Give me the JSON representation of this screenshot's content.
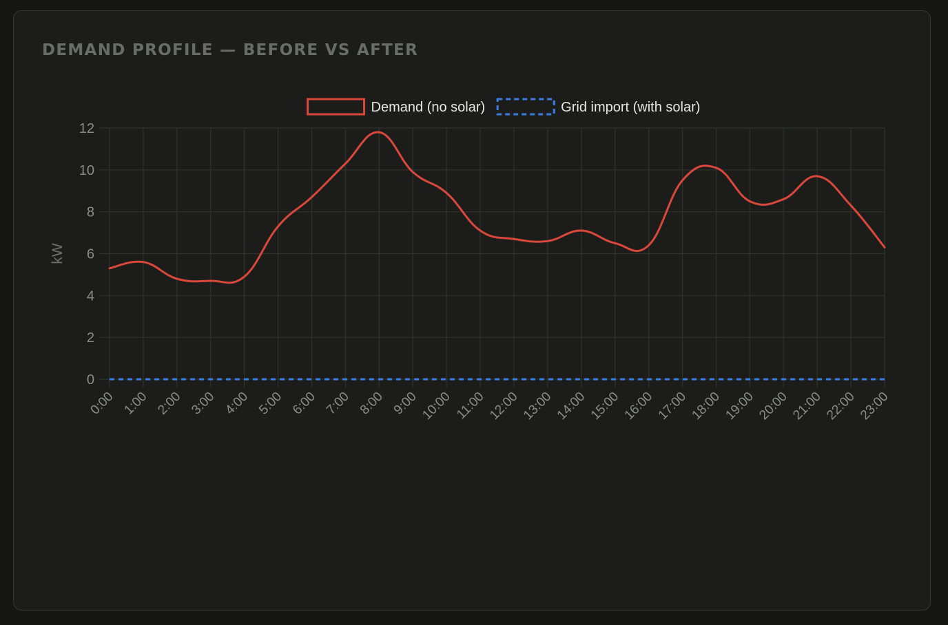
{
  "panel": {
    "title": "DEMAND PROFILE — BEFORE VS AFTER"
  },
  "chart_data": {
    "type": "line",
    "title": "",
    "xlabel": "",
    "ylabel": "kW",
    "x": [
      "0:00",
      "1:00",
      "2:00",
      "3:00",
      "4:00",
      "5:00",
      "6:00",
      "7:00",
      "8:00",
      "9:00",
      "10:00",
      "11:00",
      "12:00",
      "13:00",
      "14:00",
      "15:00",
      "16:00",
      "17:00",
      "18:00",
      "19:00",
      "20:00",
      "21:00",
      "22:00",
      "23:00"
    ],
    "ylim": [
      0,
      12
    ],
    "yticks": [
      0,
      2,
      4,
      6,
      8,
      10,
      12
    ],
    "grid": true,
    "legend": "top-center",
    "smooth": true,
    "series": [
      {
        "name": "Demand (no solar)",
        "color": "#d9483b",
        "dashed": false,
        "values": [
          5.3,
          5.6,
          4.8,
          4.7,
          4.9,
          7.3,
          8.7,
          10.3,
          11.8,
          9.9,
          8.9,
          7.1,
          6.7,
          6.6,
          7.1,
          6.5,
          6.4,
          9.5,
          10.1,
          8.5,
          8.6,
          9.7,
          8.3,
          6.3
        ]
      },
      {
        "name": "Grid import (with solar)",
        "color": "#3b7ce0",
        "dashed": true,
        "values": [
          0,
          0,
          0,
          0,
          0,
          0,
          0,
          0,
          0,
          0,
          0,
          0,
          0,
          0,
          0,
          0,
          0,
          0,
          0,
          0,
          0,
          0,
          0,
          0
        ]
      }
    ]
  },
  "colors": {
    "background": "#151614",
    "panel": "#1c1d1a",
    "grid": "#30332d",
    "text": "#8a8c86"
  }
}
